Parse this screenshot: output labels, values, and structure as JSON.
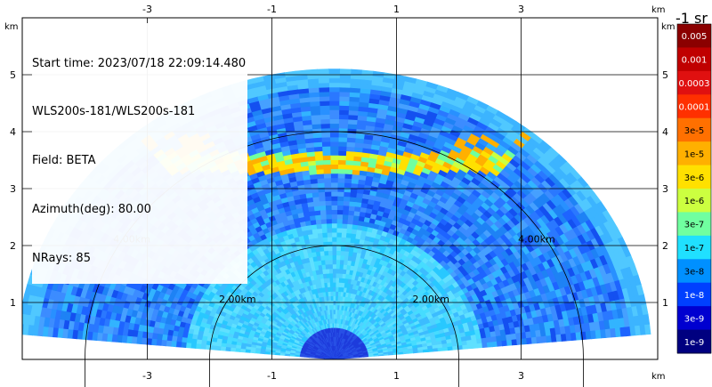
{
  "header": {
    "start_time": "Start time: 2023/07/18 22:09:14.480",
    "instrument": "WLS200s-181/WLS200s-181",
    "field": "Field: BETA",
    "azimuth": "Azimuth(deg): 80.00",
    "nrays": "NRays: 85"
  },
  "colorbar": {
    "unit_label": "-1 sr",
    "ticks": [
      "0.005",
      "0.001",
      "0.0003",
      "0.0001",
      "3e-5",
      "1e-5",
      "3e-6",
      "1e-6",
      "3e-7",
      "1e-7",
      "3e-8",
      "1e-8",
      "3e-9",
      "1e-9"
    ],
    "colors": [
      "#8b0000",
      "#c00000",
      "#e01010",
      "#ff3000",
      "#ff7000",
      "#ffb000",
      "#ffe000",
      "#ccff40",
      "#70ffa0",
      "#20e0ff",
      "#0090ff",
      "#0040ff",
      "#0000d0",
      "#000080"
    ]
  },
  "chart_data": {
    "type": "heatmap",
    "projection": "polar RHI sector, range vs elevation",
    "x_unit": "km",
    "y_unit": "km",
    "xlim": [
      -5.0,
      5.0
    ],
    "ylim": [
      0.0,
      5.0
    ],
    "x_ticks": [
      "-3",
      "-1",
      "1",
      "3"
    ],
    "y_ticks": [
      "1",
      "2",
      "3",
      "4",
      "5"
    ],
    "axis_unit_label": "km",
    "range_ring_labels": [
      "2.00km",
      "4.00km"
    ],
    "max_range_km": 5.1,
    "elevation_deg": [
      5,
      175
    ],
    "feature": "enhanced backscatter layer near 3.5 km altitude"
  }
}
